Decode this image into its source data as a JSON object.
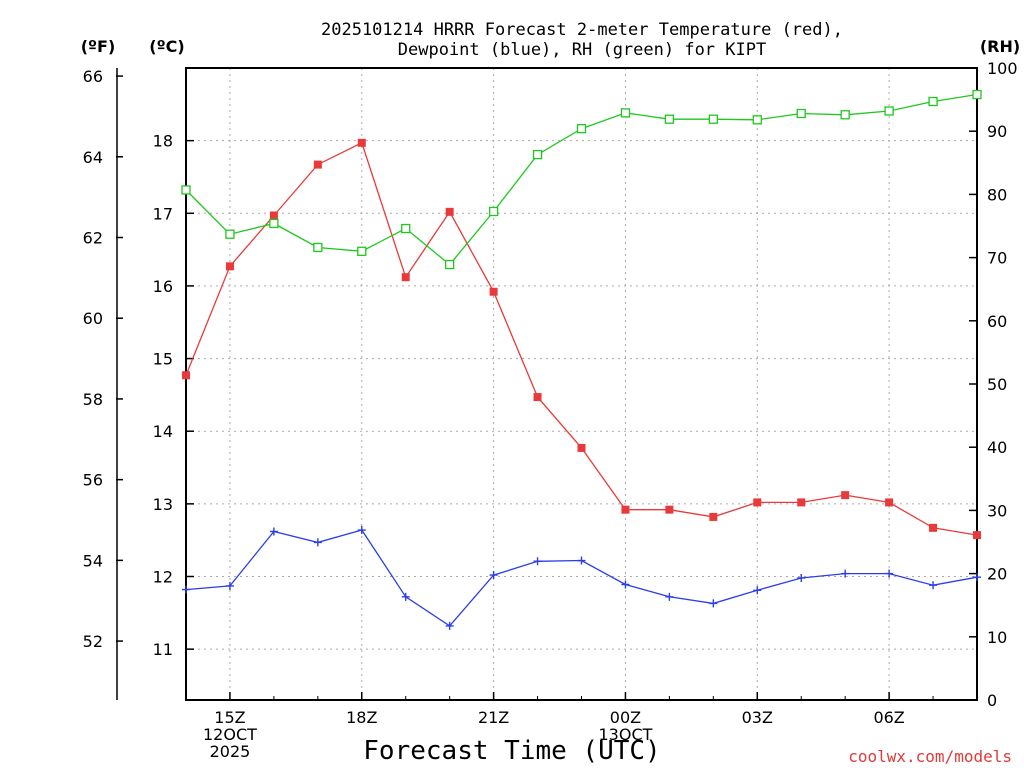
{
  "chart_data": {
    "type": "line",
    "title_line1": "2025101214 HRRR Forecast 2-meter Temperature (red),",
    "title_line2": "Dewpoint (blue), RH (green) for KIPT",
    "xlabel": "Forecast Time (UTC)",
    "unit_f": "(ºF)",
    "unit_c": "(ºC)",
    "unit_rh": "(RH)",
    "credit": "coolwx.com/models",
    "x_hours": [
      14,
      15,
      16,
      17,
      18,
      19,
      20,
      21,
      22,
      23,
      24,
      25,
      26,
      27,
      28,
      29,
      30,
      31,
      32
    ],
    "x_range": [
      14,
      32
    ],
    "x_ticks": [
      {
        "hour": 15,
        "lines": [
          "15Z",
          "12OCT",
          "2025"
        ]
      },
      {
        "hour": 18,
        "lines": [
          "18Z"
        ]
      },
      {
        "hour": 21,
        "lines": [
          "21Z"
        ]
      },
      {
        "hour": 24,
        "lines": [
          "00Z",
          "13OCT"
        ]
      },
      {
        "hour": 27,
        "lines": [
          "03Z"
        ]
      },
      {
        "hour": 30,
        "lines": [
          "06Z"
        ]
      }
    ],
    "celsius_range": [
      10.3,
      19.0
    ],
    "celsius_ticks": [
      "11",
      "12",
      "13",
      "14",
      "15",
      "16",
      "17",
      "18"
    ],
    "fahrenheit_ticks": [
      "52",
      "54",
      "56",
      "58",
      "60",
      "62",
      "64",
      "66"
    ],
    "rh_range": [
      0,
      100
    ],
    "rh_ticks": [
      "0",
      "10",
      "20",
      "30",
      "40",
      "50",
      "60",
      "70",
      "80",
      "90",
      "100"
    ],
    "series": [
      {
        "name": "Temperature",
        "units": "C",
        "color": "#e83a3a",
        "marker": "filled-square",
        "values": [
          14.77,
          16.27,
          16.97,
          17.67,
          17.97,
          16.12,
          17.02,
          15.92,
          14.47,
          13.77,
          12.92,
          12.92,
          12.82,
          13.02,
          13.02,
          13.12,
          13.02,
          12.67,
          12.57
        ]
      },
      {
        "name": "Dewpoint",
        "units": "C",
        "color": "#2a3ee8",
        "marker": "plus",
        "values": [
          11.82,
          11.87,
          12.62,
          12.47,
          12.64,
          11.72,
          11.32,
          12.02,
          12.21,
          12.22,
          11.89,
          11.72,
          11.63,
          11.81,
          11.98,
          12.04,
          12.04,
          11.88,
          11.99
        ]
      },
      {
        "name": "RH",
        "units": "%",
        "color": "#1ec81e",
        "marker": "open-square",
        "values": [
          80.7,
          73.7,
          75.4,
          71.6,
          71.0,
          74.6,
          68.9,
          77.3,
          86.3,
          90.4,
          92.9,
          91.9,
          91.9,
          91.8,
          92.8,
          92.6,
          93.2,
          94.7,
          95.8
        ]
      }
    ]
  }
}
